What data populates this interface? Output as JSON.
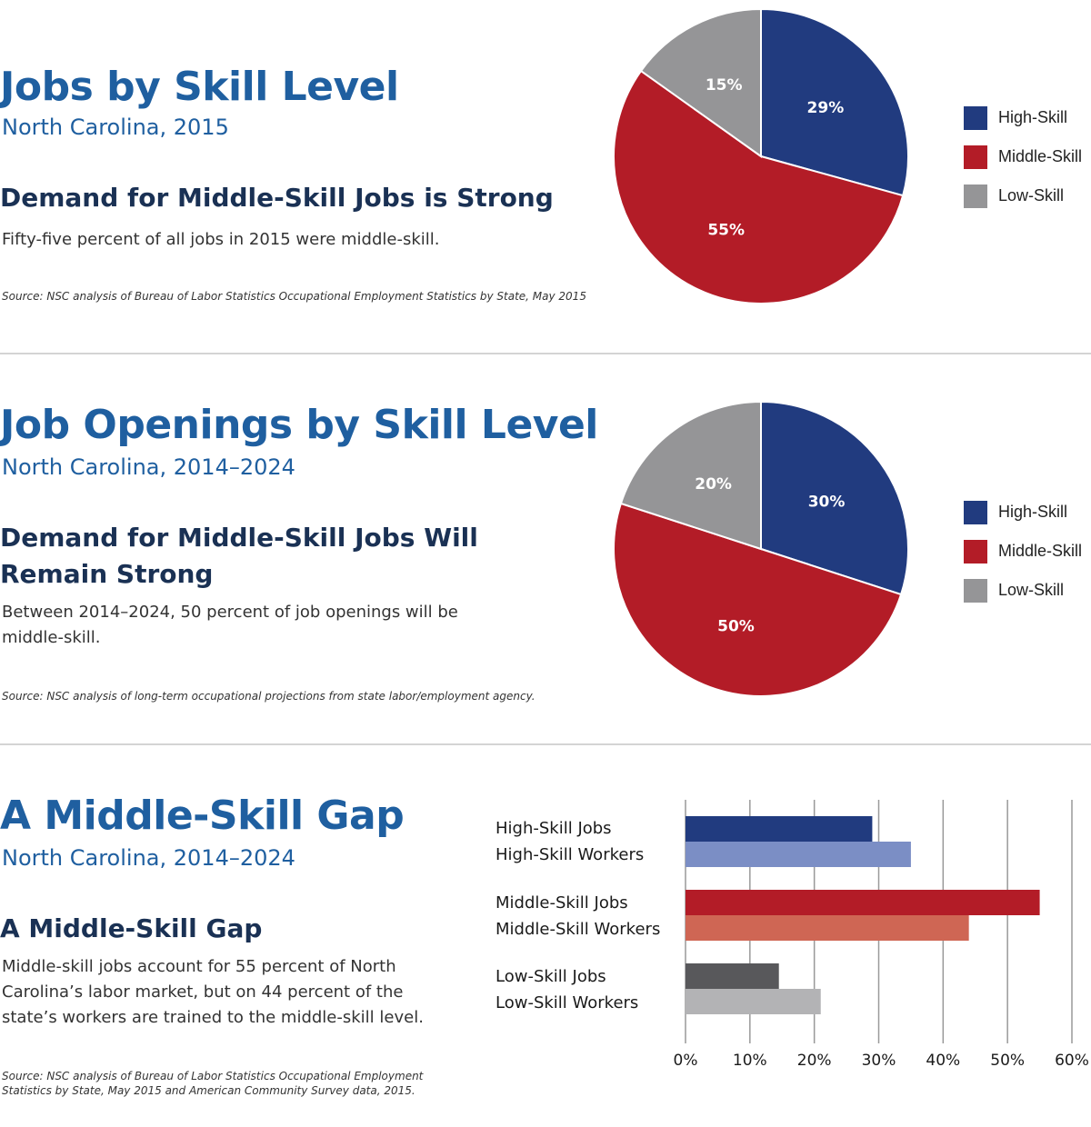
{
  "sections": {
    "jobs": {
      "title": "Jobs by Skill Level",
      "subtitle": "North Carolina, 2015",
      "heading": "Demand for Middle-Skill Jobs is Strong",
      "body": "Fifty-five percent of all jobs in 2015 were middle-skill.",
      "source": "Source: NSC  analysis of Bureau of Labor Statistics Occupational Employment Statistics by State, May 2015"
    },
    "openings": {
      "title": "Job Openings by Skill Level",
      "subtitle": "North Carolina, 2014–2024",
      "heading_line1": "Demand for Middle-Skill Jobs Will",
      "heading_line2": "Remain Strong",
      "body_line1": "Between 2014–2024, 50 percent of job openings will be",
      "body_line2": "middle-skill.",
      "source": "Source: NSC analysis of long-term occupational projections from state labor/employment agency."
    },
    "gap": {
      "title": "A Middle-Skill Gap",
      "subtitle": "North Carolina, 2014–2024",
      "heading": "A Middle-Skill Gap",
      "body_line1": "Middle-skill jobs account for 55 percent of North",
      "body_line2": "Carolina’s labor market, but on 44 percent of the",
      "body_line3": "state’s workers are trained to the middle-skill level.",
      "source_line1": "Source: NSC analysis of Bureau of Labor Statistics Occupational Employment",
      "source_line2": "Statistics by State, May 2015 and American Community Survey data, 2015."
    }
  },
  "legend": {
    "high": "High-Skill",
    "middle": "Middle-Skill",
    "low": "Low-Skill"
  },
  "colors": {
    "high": "#213b7f",
    "middle": "#b31c27",
    "low": "#959597",
    "high_workers": "#7b8ec5",
    "middle_workers": "#cf6654",
    "low_jobs": "#58585b",
    "low_workers": "#b3b3b5",
    "title": "#1f5fa0"
  },
  "chart_data": [
    {
      "type": "pie",
      "labels": [
        "High-Skill",
        "Middle-Skill",
        "Low-Skill"
      ],
      "values": [
        29,
        55,
        15
      ],
      "value_labels": [
        "29%",
        "55%",
        "15%"
      ],
      "legend_placement": "right"
    },
    {
      "type": "pie",
      "labels": [
        "High-Skill",
        "Middle-Skill",
        "Low-Skill"
      ],
      "values": [
        30,
        50,
        20
      ],
      "value_labels": [
        "30%",
        "50%",
        "20%"
      ],
      "legend_placement": "right"
    },
    {
      "type": "bar",
      "orientation": "horizontal",
      "categories": [
        "High-Skill Jobs",
        "High-Skill Workers",
        "Middle-Skill Jobs",
        "Middle-Skill Workers",
        "Low-Skill Jobs",
        "Low-Skill Workers"
      ],
      "values": [
        29,
        35,
        55,
        44,
        14.5,
        21
      ],
      "xlim": [
        0,
        60
      ],
      "xticks": [
        "0%",
        "10%",
        "20%",
        "30%",
        "40%",
        "50%",
        "60%"
      ],
      "grid": true
    }
  ]
}
